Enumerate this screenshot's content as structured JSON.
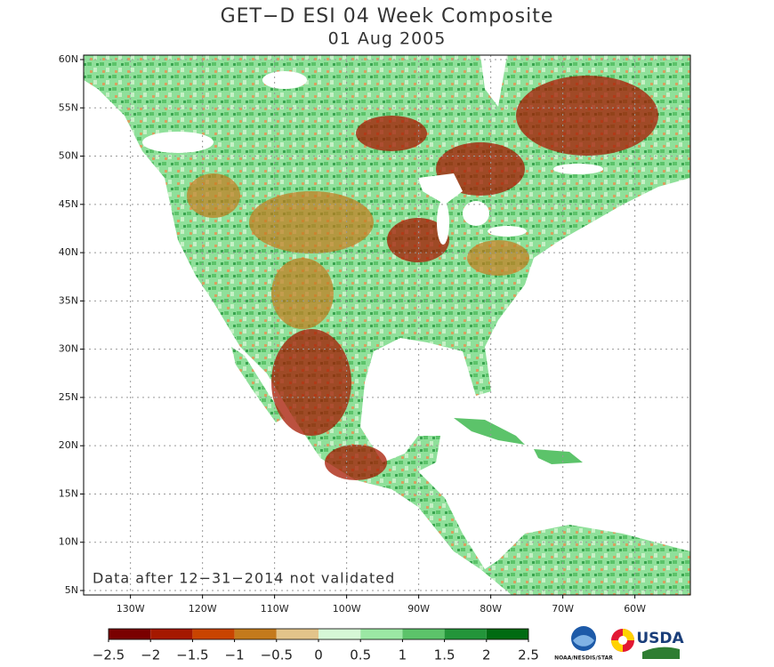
{
  "map": {
    "title": "GET−D ESI 04 Week Composite",
    "subtitle": "01 Aug 2005",
    "note": "Data after 12−31−2014 not validated",
    "xlim": [
      -136.5,
      -52.3
    ],
    "ylim": [
      4.54,
      60.46
    ],
    "lat_ticks": [
      {
        "value": 5,
        "label": "5N"
      },
      {
        "value": 10,
        "label": "10N"
      },
      {
        "value": 15,
        "label": "15N"
      },
      {
        "value": 20,
        "label": "20N"
      },
      {
        "value": 25,
        "label": "25N"
      },
      {
        "value": 30,
        "label": "30N"
      },
      {
        "value": 35,
        "label": "35N"
      },
      {
        "value": 40,
        "label": "40N"
      },
      {
        "value": 45,
        "label": "45N"
      },
      {
        "value": 50,
        "label": "50N"
      },
      {
        "value": 55,
        "label": "55N"
      },
      {
        "value": 60,
        "label": "60N"
      }
    ],
    "lon_ticks": [
      {
        "value": -130,
        "label": "130W"
      },
      {
        "value": -120,
        "label": "120W"
      },
      {
        "value": -110,
        "label": "110W"
      },
      {
        "value": -100,
        "label": "100W"
      },
      {
        "value": -90,
        "label": "90W"
      },
      {
        "value": -80,
        "label": "80W"
      },
      {
        "value": -70,
        "label": "70W"
      },
      {
        "value": -60,
        "label": "60W"
      }
    ],
    "grid": true,
    "colorbar": {
      "range": [
        -2.5,
        2.5
      ],
      "ticks": [
        {
          "value": -2.5,
          "label": "−2.5"
        },
        {
          "value": -2,
          "label": "−2"
        },
        {
          "value": -1.5,
          "label": "−1.5"
        },
        {
          "value": -1,
          "label": "−1"
        },
        {
          "value": -0.5,
          "label": "−0.5"
        },
        0,
        0.5,
        1,
        1.5,
        2,
        2.5
      ],
      "colors": [
        "#7a0000",
        "#a51800",
        "#c94400",
        "#c47a1c",
        "#e2c48a",
        "#d6f7d6",
        "#9be8a4",
        "#5cc36a",
        "#23953a",
        "#006b12"
      ]
    },
    "logos": {
      "noaa": "NOAA/NESDIS/STAR",
      "usda": "USDA"
    }
  }
}
